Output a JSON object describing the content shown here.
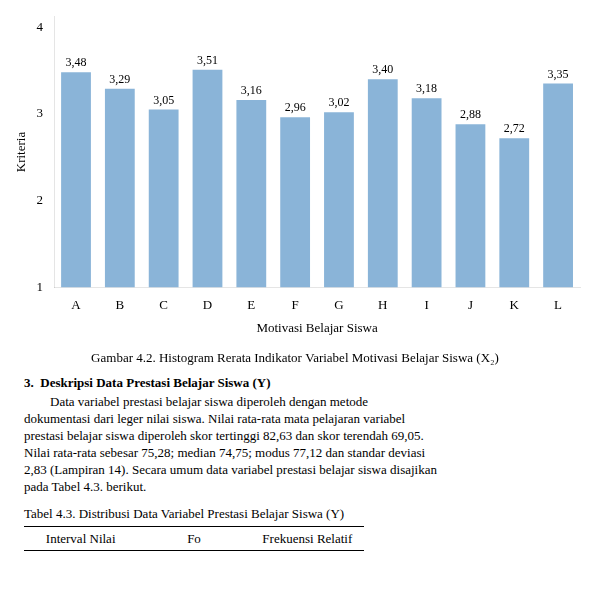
{
  "chart_data": {
    "type": "bar",
    "title": "Gambar 4.2. Histogram Rerata Indikator Variabel Motivasi Belajar Siswa (X₂)",
    "x_label": "Motivasi Belajar Siswa",
    "y_label": "Kriteria",
    "categories": [
      "A",
      "B",
      "C",
      "D",
      "E",
      "F",
      "G",
      "H",
      "I",
      "J",
      "K",
      "L"
    ],
    "values": [
      3.48,
      3.29,
      3.05,
      3.51,
      3.16,
      2.96,
      3.02,
      3.4,
      3.18,
      2.88,
      2.72,
      3.35
    ],
    "value_labels": [
      "3,48",
      "3,29",
      "3,05",
      "3,51",
      "3,16",
      "2,96",
      "3,02",
      "3,40",
      "3,18",
      "2,88",
      "2,72",
      "3,35"
    ],
    "data_labels": true,
    "color": "#8AB4D8",
    "ylim": [
      1,
      4.12
    ],
    "yticks": [
      1,
      2,
      3,
      4
    ],
    "grid": false,
    "annotations": [
      "3.  Deskripsi Data Prestasi Belajar Siswa (Y)",
      "        Data variabel prestasi belajar siswa diperoleh dengan metode",
      "dokumentasi dari leger nilai siswa. Nilai rata-rata mata pelajaran variabel",
      "prestasi belajar siswa diperoleh skor tertinggi 82,63 dan skor terendah 69,05.",
      "Nilai rata-rata sebesar 75,28; median 74,75; modus 77,12 dan standar deviasi",
      "2,83 (Lampiran 14). Secara umum data variabel prestasi belajar siswa disajikan",
      "pada Tabel 4.3. berikut.",
      "Tabel 4.3. Distribusi Data Variabel Prestasi Belajar Siswa (Y)",
      "Interval Nilai",
      "Fo",
      "Frekuensi Relatif"
    ]
  }
}
